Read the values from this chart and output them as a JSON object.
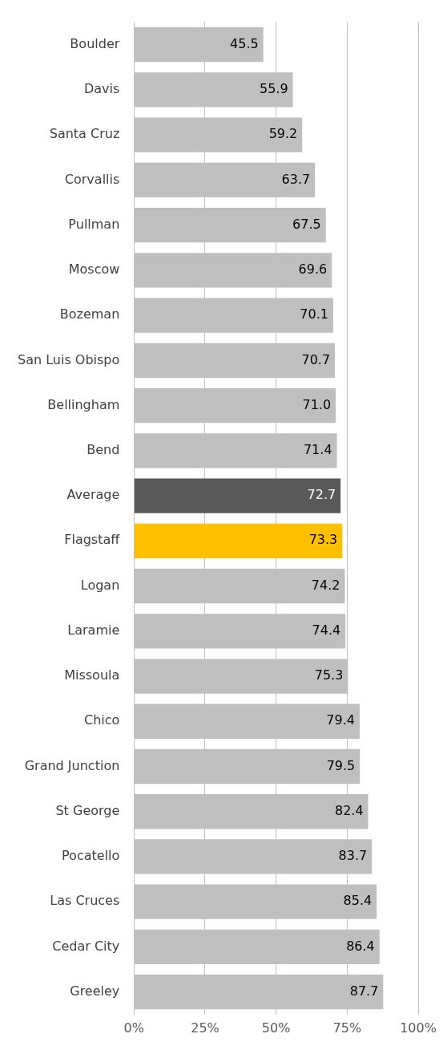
{
  "chart_data": {
    "type": "bar",
    "orientation": "horizontal",
    "categories": [
      "Boulder",
      "Davis",
      "Santa Cruz",
      "Corvallis",
      "Pullman",
      "Moscow",
      "Bozeman",
      "San Luis Obispo",
      "Bellingham",
      "Bend",
      "Average",
      "Flagstaff",
      "Logan",
      "Laramie",
      "Missoula",
      "Chico",
      "Grand Junction",
      "St George",
      "Pocatello",
      "Las Cruces",
      "Cedar City",
      "Greeley"
    ],
    "values": [
      45.5,
      55.9,
      59.2,
      63.7,
      67.5,
      69.6,
      70.1,
      70.7,
      71.0,
      71.4,
      72.7,
      73.3,
      74.2,
      74.4,
      75.3,
      79.4,
      79.5,
      82.4,
      83.7,
      85.4,
      86.4,
      87.7
    ],
    "value_labels": [
      "45.5",
      "55.9",
      "59.2",
      "63.7",
      "67.5",
      "69.6",
      "70.1",
      "70.7",
      "71.0",
      "71.4",
      "72.7",
      "73.3",
      "74.2",
      "74.4",
      "75.3",
      "79.4",
      "79.5",
      "82.4",
      "83.7",
      "85.4",
      "86.4",
      "87.7"
    ],
    "colors": [
      "#bfbfbf",
      "#bfbfbf",
      "#bfbfbf",
      "#bfbfbf",
      "#bfbfbf",
      "#bfbfbf",
      "#bfbfbf",
      "#bfbfbf",
      "#bfbfbf",
      "#bfbfbf",
      "#595959",
      "#ffc000",
      "#bfbfbf",
      "#bfbfbf",
      "#bfbfbf",
      "#bfbfbf",
      "#bfbfbf",
      "#bfbfbf",
      "#bfbfbf",
      "#bfbfbf",
      "#bfbfbf",
      "#bfbfbf"
    ],
    "xlim": [
      0,
      100
    ],
    "xticks": [
      {
        "value": 0,
        "label": "0%"
      },
      {
        "value": 25,
        "label": "25%"
      },
      {
        "value": 50,
        "label": "50%"
      },
      {
        "value": 75,
        "label": "75%"
      },
      {
        "value": 100,
        "label": "100%"
      }
    ],
    "grid": "x",
    "legend": false
  }
}
